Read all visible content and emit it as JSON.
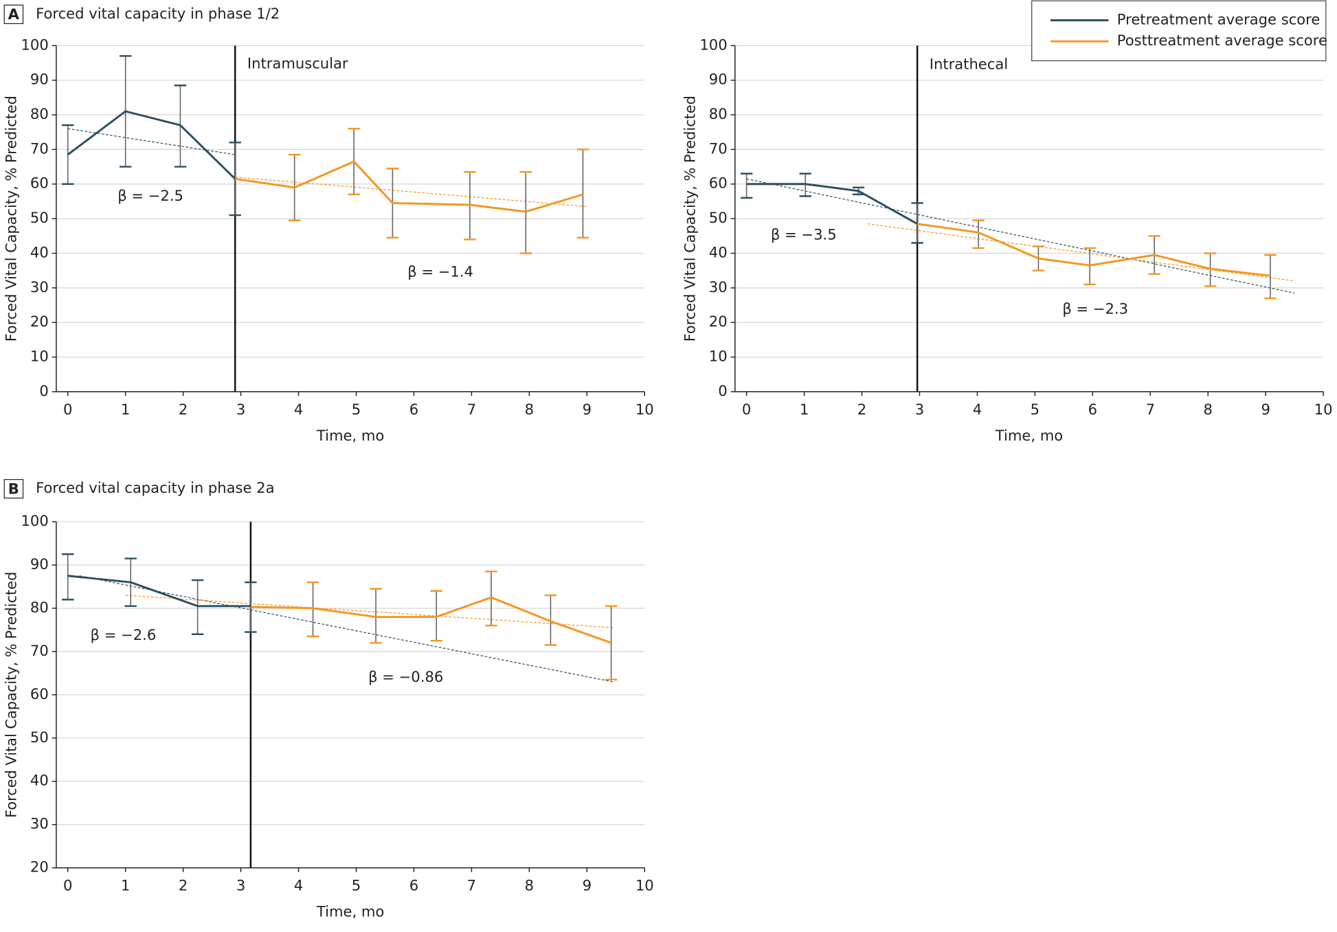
{
  "chart_data": [
    {
      "type": "line",
      "panel": "A",
      "title": "Forced vital capacity in phase 1/2",
      "xlabel": "Time, mo",
      "ylabel": "Forced Vital Capacity, % Predicted",
      "xlim": [
        -0.2,
        10
      ],
      "ylim": [
        0,
        100
      ],
      "xticks": [
        0,
        1,
        2,
        3,
        4,
        5,
        6,
        7,
        8,
        9,
        10
      ],
      "yticks": [
        0,
        10,
        20,
        30,
        40,
        50,
        60,
        70,
        80,
        90,
        100
      ],
      "grid": true,
      "divider": {
        "x": 2.9,
        "label": "Intramuscular"
      },
      "annotations": [
        "β = −2.5",
        "β = −1.4"
      ],
      "series": [
        {
          "name": "Pretreatment average score",
          "color": "#2f4f5e",
          "x": [
            0,
            1,
            1.95,
            2.9
          ],
          "values": [
            68.5,
            81,
            77,
            61.5
          ],
          "lower": [
            60,
            65,
            65,
            51
          ],
          "upper": [
            77,
            97,
            88.5,
            72
          ],
          "trend": {
            "x": [
              0,
              2.9
            ],
            "y": [
              76,
              68.5
            ]
          }
        },
        {
          "name": "Posttreatment average score",
          "color": "#f5961f",
          "x": [
            2.9,
            3.93,
            4.96,
            5.63,
            6.97,
            7.94,
            8.93
          ],
          "values": [
            61.5,
            59,
            66.5,
            54.5,
            54,
            52,
            57
          ],
          "lower": [
            null,
            49.5,
            57,
            44.5,
            44,
            40,
            44.5
          ],
          "upper": [
            null,
            68.5,
            76,
            64.5,
            63.5,
            63.5,
            70
          ],
          "trend": {
            "x": [
              2.9,
              9
            ],
            "y": [
              62,
              53.5
            ]
          }
        }
      ]
    },
    {
      "type": "line",
      "xlabel": "Time, mo",
      "ylabel": "Forced Vital Capacity, % Predicted",
      "xlim": [
        -0.2,
        10
      ],
      "ylim": [
        0,
        100
      ],
      "xticks": [
        0,
        1,
        2,
        3,
        4,
        5,
        6,
        7,
        8,
        9,
        10
      ],
      "yticks": [
        0,
        10,
        20,
        30,
        40,
        50,
        60,
        70,
        80,
        90,
        100
      ],
      "grid": true,
      "divider": {
        "x": 2.96,
        "label": "Intrathecal"
      },
      "annotations": [
        "β = −3.5",
        "β = −2.3"
      ],
      "series": [
        {
          "color": "#2f4f5e",
          "x": [
            0,
            1.02,
            1.94,
            2.96
          ],
          "values": [
            60,
            60,
            58,
            48.5
          ],
          "lower": [
            56,
            56.5,
            57,
            43
          ],
          "upper": [
            63,
            63,
            59,
            54.5
          ],
          "trend": {
            "x": [
              0,
              9.5
            ],
            "y": [
              61.5,
              28.5
            ]
          }
        },
        {
          "color": "#f5961f",
          "x": [
            2.96,
            4.02,
            5.06,
            5.95,
            7.07,
            8.04,
            9.08
          ],
          "values": [
            48.5,
            46,
            38.5,
            36.5,
            39.5,
            35.5,
            33.5
          ],
          "lower": [
            null,
            41.5,
            35,
            31,
            34,
            30.5,
            27
          ],
          "upper": [
            null,
            49.5,
            42,
            41.5,
            45,
            40,
            39.5
          ],
          "trend": {
            "x": [
              2.1,
              9.5
            ],
            "y": [
              48.5,
              32
            ]
          }
        }
      ]
    },
    {
      "type": "line",
      "panel": "B",
      "title": "Forced vital capacity in phase 2a",
      "xlabel": "Time, mo",
      "ylabel": "Forced Vital Capacity, % Predicted",
      "xlim": [
        -0.2,
        10
      ],
      "ylim": [
        20,
        100
      ],
      "xticks": [
        0,
        1,
        2,
        3,
        4,
        5,
        6,
        7,
        8,
        9,
        10
      ],
      "yticks": [
        20,
        30,
        40,
        50,
        60,
        70,
        80,
        90,
        100
      ],
      "grid": true,
      "divider": {
        "x": 3.17
      },
      "annotations": [
        "β = −2.6",
        "β = −0.86"
      ],
      "series": [
        {
          "color": "#2f4f5e",
          "x": [
            0,
            1.09,
            2.25,
            3.17
          ],
          "values": [
            87.5,
            86,
            80.5,
            80.5
          ],
          "lower": [
            82,
            80.5,
            74,
            74.5
          ],
          "upper": [
            92.5,
            91.5,
            86.5,
            86
          ],
          "trend": {
            "x": [
              0.2,
              9.45
            ],
            "y": [
              87.5,
              63
            ]
          }
        },
        {
          "color": "#f5961f",
          "x": [
            3.17,
            4.25,
            5.34,
            6.39,
            7.34,
            8.37,
            9.42
          ],
          "values": [
            80.3,
            80,
            78,
            78,
            82.5,
            77,
            72
          ],
          "lower": [
            null,
            73.5,
            72,
            72.5,
            76,
            71.5,
            63.5
          ],
          "upper": [
            null,
            86,
            84.5,
            84,
            88.5,
            83,
            80.5
          ],
          "trend": {
            "x": [
              1,
              9.45
            ],
            "y": [
              83,
              75.5
            ]
          }
        }
      ]
    }
  ]
}
